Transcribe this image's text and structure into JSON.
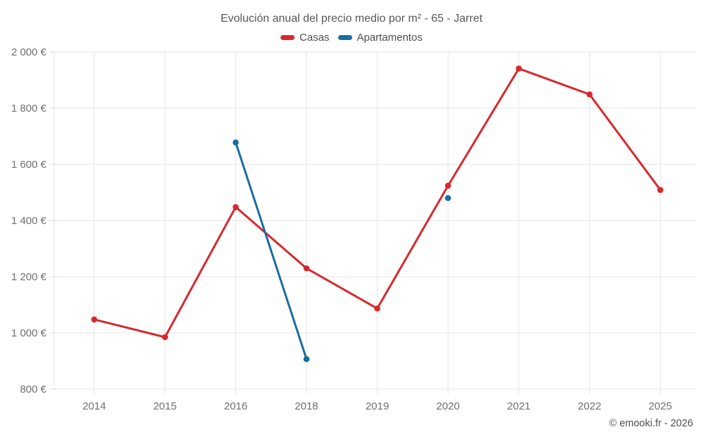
{
  "chart_data": {
    "type": "line",
    "title": "Evolución anual del precio medio por m² - 65 - Jarret",
    "categories": [
      "2014",
      "2015",
      "2016",
      "2018",
      "2019",
      "2020",
      "2021",
      "2022",
      "2025"
    ],
    "series": [
      {
        "name": "Casas",
        "color": "#d7282e",
        "values": [
          1048,
          985,
          1448,
          1230,
          1087,
          1524,
          1941,
          1849,
          1509
        ]
      },
      {
        "name": "Apartamentos",
        "color": "#1a6d9d",
        "values": [
          null,
          null,
          1678,
          907,
          null,
          1480,
          null,
          null,
          null
        ]
      }
    ],
    "ylim": [
      800,
      2000
    ],
    "yticks": [
      800,
      1000,
      1200,
      1400,
      1600,
      1800,
      2000
    ],
    "ytick_labels": [
      "800 €",
      "1 000 €",
      "1 200 €",
      "1 400 €",
      "1 600 €",
      "1 800 €",
      "2 000 €"
    ],
    "grid": true,
    "legend_position": "top",
    "gap_rule": "line segments only connect adjacent categories with data; isolated points drawn as dots",
    "footer": "© emooki.fr - 2026",
    "colors": {
      "gridline": "#e6e6e6",
      "tick": "#d9d9d9",
      "axis_label": "#6f6f6f",
      "title_text": "#585858",
      "legend_text": "#4d4d4d",
      "footer_text": "#4f4f4f",
      "background": "#ffffff"
    }
  }
}
